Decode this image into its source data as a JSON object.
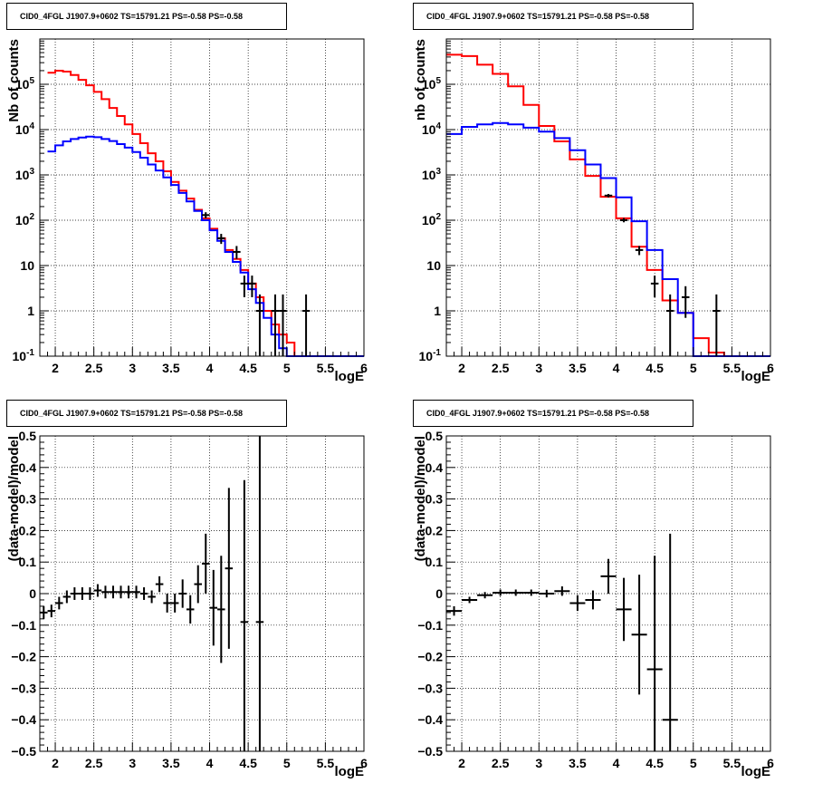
{
  "chart_data": [
    {
      "type": "line",
      "title": "CID0_4FGL J1907.9+0602 TS=15791.21 PS=-0.58 PS=-0.58",
      "xlabel": "logE",
      "ylabel": "Nb of counts",
      "xlim": [
        1.8,
        6.0
      ],
      "ylim": [
        0.1,
        1000000
      ],
      "yscale": "log",
      "grid": true,
      "x_ticks": [
        "2",
        "2.5",
        "3",
        "3.5",
        "4",
        "4.5",
        "5",
        "5.5",
        "6"
      ],
      "y_ticks": [
        "10^-1",
        "1",
        "10",
        "10^2",
        "10^3",
        "10^4",
        "10^5"
      ],
      "series": [
        {
          "color": "#ff0000",
          "style": "step",
          "bin_edges": [
            1.9,
            2.0,
            2.1,
            2.2,
            2.3,
            2.4,
            2.5,
            2.6,
            2.7,
            2.8,
            2.9,
            3.0,
            3.1,
            3.2,
            3.3,
            3.4,
            3.5,
            3.6,
            3.7,
            3.8,
            3.9,
            4.0,
            4.1,
            4.2,
            4.3,
            4.4,
            4.5,
            4.6,
            4.7,
            4.8,
            4.9,
            5.0,
            5.1,
            5.2,
            5.3,
            5.4,
            5.5,
            5.6,
            5.7,
            5.8,
            5.9,
            6.0
          ],
          "values": [
            180000,
            200000,
            190000,
            160000,
            125000,
            95000,
            68000,
            47000,
            30000,
            20000,
            13000,
            8000,
            5000,
            3000,
            2000,
            1200,
            700,
            450,
            300,
            170,
            110,
            65,
            40,
            22,
            14,
            8,
            4,
            2,
            1,
            0.5,
            0.3,
            0.2,
            0.1,
            0.1,
            0.1,
            0.1,
            0.1,
            0.1,
            0.1,
            0.1,
            0.1
          ]
        },
        {
          "color": "#0000ff",
          "style": "step",
          "bin_edges": [
            1.9,
            2.0,
            2.1,
            2.2,
            2.3,
            2.4,
            2.5,
            2.6,
            2.7,
            2.8,
            2.9,
            3.0,
            3.1,
            3.2,
            3.3,
            3.4,
            3.5,
            3.6,
            3.7,
            3.8,
            3.9,
            4.0,
            4.1,
            4.2,
            4.3,
            4.4,
            4.5,
            4.6,
            4.7,
            4.8,
            4.9,
            5.0,
            5.1,
            5.2,
            5.3,
            5.4,
            5.5,
            5.6,
            5.7,
            5.8,
            5.9,
            6.0
          ],
          "values": [
            3300,
            4500,
            5500,
            6200,
            6700,
            7000,
            6800,
            6200,
            5600,
            4800,
            4000,
            3200,
            2400,
            1700,
            1250,
            880,
            600,
            400,
            260,
            160,
            100,
            60,
            35,
            20,
            12,
            7,
            3,
            1.5,
            0.7,
            0.3,
            0.15,
            0.1,
            0.1,
            0.1,
            0.1,
            0.1,
            0.1,
            0.1,
            0.1,
            0.1,
            0.1
          ]
        },
        {
          "color": "#000000",
          "style": "errorbar",
          "points": [
            {
              "x": 3.95,
              "y": 130,
              "ylo": 110,
              "yhi": 150
            },
            {
              "x": 4.15,
              "y": 40,
              "ylo": 30,
              "yhi": 50
            },
            {
              "x": 4.35,
              "y": 20,
              "ylo": 14,
              "yhi": 27
            },
            {
              "x": 4.45,
              "y": 4,
              "ylo": 2,
              "yhi": 6
            },
            {
              "x": 4.55,
              "y": 4,
              "ylo": 2,
              "yhi": 6
            },
            {
              "x": 4.65,
              "y": 1,
              "ylo": 0.1,
              "yhi": 2.3
            },
            {
              "x": 4.85,
              "y": 1,
              "ylo": 0.1,
              "yhi": 2.3
            },
            {
              "x": 4.95,
              "y": 1,
              "ylo": 0.1,
              "yhi": 2.3
            },
            {
              "x": 5.25,
              "y": 1,
              "ylo": 0.1,
              "yhi": 2.3
            }
          ]
        }
      ]
    },
    {
      "type": "line",
      "title": "CID0_4FGL J1907.9+0602 TS=15791.21 PS=-0.58 PS=-0.58",
      "xlabel": "logE",
      "ylabel": "nb of counts",
      "xlim": [
        1.8,
        6.0
      ],
      "ylim": [
        0.1,
        1000000
      ],
      "yscale": "log",
      "grid": true,
      "x_ticks": [
        "2",
        "2.5",
        "3",
        "3.5",
        "4",
        "4.5",
        "5",
        "5.5",
        "6"
      ],
      "y_ticks": [
        "10^-1",
        "1",
        "10",
        "10^2",
        "10^3",
        "10^4",
        "10^5"
      ],
      "series": [
        {
          "color": "#ff0000",
          "style": "step",
          "bin_edges": [
            1.8,
            2.0,
            2.2,
            2.4,
            2.6,
            2.8,
            3.0,
            3.2,
            3.4,
            3.6,
            3.8,
            4.0,
            4.2,
            4.4,
            4.6,
            4.8,
            5.0,
            5.2,
            5.4,
            5.6,
            5.8,
            6.0
          ],
          "values": [
            450000,
            420000,
            270000,
            170000,
            90000,
            35000,
            12000,
            5500,
            2200,
            950,
            330,
            110,
            26,
            8,
            1.7,
            0.9,
            0.25,
            0.12,
            0.1,
            0.1,
            0.1
          ]
        },
        {
          "color": "#0000ff",
          "style": "step",
          "bin_edges": [
            1.8,
            2.0,
            2.2,
            2.4,
            2.6,
            2.8,
            3.0,
            3.2,
            3.4,
            3.6,
            3.8,
            4.0,
            4.2,
            4.4,
            4.6,
            4.8,
            5.0,
            5.2,
            5.4,
            5.6,
            5.8,
            6.0
          ],
          "values": [
            8000,
            11500,
            13000,
            14000,
            13000,
            11000,
            9000,
            6500,
            3500,
            1700,
            850,
            320,
            95,
            22,
            5,
            0.9,
            0.1,
            0.1,
            0.1,
            0.1,
            0.1
          ]
        },
        {
          "color": "#000000",
          "style": "errorbar",
          "points": [
            {
              "x": 3.9,
              "y": 350,
              "ylo": 320,
              "yhi": 380
            },
            {
              "x": 4.1,
              "y": 100,
              "ylo": 90,
              "yhi": 112
            },
            {
              "x": 4.3,
              "y": 22,
              "ylo": 17,
              "yhi": 27
            },
            {
              "x": 4.5,
              "y": 4,
              "ylo": 2,
              "yhi": 6
            },
            {
              "x": 4.7,
              "y": 1,
              "ylo": 0.1,
              "yhi": 2.3
            },
            {
              "x": 4.9,
              "y": 2,
              "ylo": 0.7,
              "yhi": 3.5
            },
            {
              "x": 5.3,
              "y": 1,
              "ylo": 0.1,
              "yhi": 2.3
            }
          ]
        }
      ]
    },
    {
      "type": "scatter",
      "title": "CID0_4FGL J1907.9+0602 TS=15791.21 PS=-0.58 PS=-0.58",
      "xlabel": "logE",
      "ylabel": "(data-model)/model",
      "xlim": [
        1.8,
        6.0
      ],
      "ylim": [
        -0.5,
        0.5
      ],
      "grid": true,
      "x_ticks": [
        "2",
        "2.5",
        "3",
        "3.5",
        "4",
        "4.5",
        "5",
        "5.5",
        "6"
      ],
      "y_ticks": [
        "-0.5",
        "-0.4",
        "-0.3",
        "-0.2",
        "-0.1",
        "0",
        "0.1",
        "0.2",
        "0.3",
        "0.4",
        "0.5"
      ],
      "series": [
        {
          "color": "#000000",
          "style": "errorbar",
          "xerr": 0.05,
          "points": [
            {
              "x": 1.85,
              "y": -0.06,
              "err": 0.02
            },
            {
              "x": 1.95,
              "y": -0.055,
              "err": 0.02
            },
            {
              "x": 2.05,
              "y": -0.03,
              "err": 0.02
            },
            {
              "x": 2.15,
              "y": -0.01,
              "err": 0.02
            },
            {
              "x": 2.25,
              "y": 0.0,
              "err": 0.02
            },
            {
              "x": 2.35,
              "y": 0.0,
              "err": 0.02
            },
            {
              "x": 2.45,
              "y": 0.0,
              "err": 0.02
            },
            {
              "x": 2.55,
              "y": 0.01,
              "err": 0.02
            },
            {
              "x": 2.65,
              "y": 0.005,
              "err": 0.02
            },
            {
              "x": 2.75,
              "y": 0.005,
              "err": 0.02
            },
            {
              "x": 2.85,
              "y": 0.005,
              "err": 0.02
            },
            {
              "x": 2.95,
              "y": 0.005,
              "err": 0.02
            },
            {
              "x": 3.05,
              "y": 0.005,
              "err": 0.02
            },
            {
              "x": 3.15,
              "y": 0.0,
              "err": 0.02
            },
            {
              "x": 3.25,
              "y": -0.01,
              "err": 0.02
            },
            {
              "x": 3.35,
              "y": 0.03,
              "err": 0.025
            },
            {
              "x": 3.45,
              "y": -0.03,
              "err": 0.03
            },
            {
              "x": 3.55,
              "y": -0.03,
              "err": 0.03
            },
            {
              "x": 3.65,
              "y": 0.0,
              "err": 0.045
            },
            {
              "x": 3.75,
              "y": -0.05,
              "err": 0.045
            },
            {
              "x": 3.85,
              "y": 0.03,
              "err": 0.06
            },
            {
              "x": 3.95,
              "y": 0.095,
              "err": 0.095
            },
            {
              "x": 4.05,
              "y": -0.045,
              "err": 0.12
            },
            {
              "x": 4.15,
              "y": -0.05,
              "err": 0.17
            },
            {
              "x": 4.25,
              "y": 0.08,
              "err": 0.255
            },
            {
              "x": 4.45,
              "y": -0.09,
              "err": 0.45
            },
            {
              "x": 4.65,
              "y": -0.09,
              "err": 0.6
            }
          ]
        }
      ]
    },
    {
      "type": "scatter",
      "title": "CID0_4FGL J1907.9+0602 TS=15791.21 PS=-0.58 PS=-0.58",
      "xlabel": "logE",
      "ylabel": "(data-model)/model",
      "xlim": [
        1.8,
        6.0
      ],
      "ylim": [
        -0.5,
        0.5
      ],
      "grid": true,
      "x_ticks": [
        "2",
        "2.5",
        "3",
        "3.5",
        "4",
        "4.5",
        "5",
        "5.5",
        "6"
      ],
      "y_ticks": [
        "-0.5",
        "-0.4",
        "-0.3",
        "-0.2",
        "-0.1",
        "0",
        "0.1",
        "0.2",
        "0.3",
        "0.4",
        "0.5"
      ],
      "series": [
        {
          "color": "#000000",
          "style": "errorbar",
          "xerr": 0.1,
          "points": [
            {
              "x": 1.9,
              "y": -0.055,
              "err": 0.015
            },
            {
              "x": 2.1,
              "y": -0.02,
              "err": 0.01
            },
            {
              "x": 2.3,
              "y": -0.005,
              "err": 0.01
            },
            {
              "x": 2.5,
              "y": 0.003,
              "err": 0.01
            },
            {
              "x": 2.7,
              "y": 0.003,
              "err": 0.01
            },
            {
              "x": 2.9,
              "y": 0.003,
              "err": 0.01
            },
            {
              "x": 3.1,
              "y": 0.0,
              "err": 0.012
            },
            {
              "x": 3.3,
              "y": 0.008,
              "err": 0.015
            },
            {
              "x": 3.5,
              "y": -0.03,
              "err": 0.025
            },
            {
              "x": 3.7,
              "y": -0.02,
              "err": 0.03
            },
            {
              "x": 3.9,
              "y": 0.055,
              "err": 0.055
            },
            {
              "x": 4.1,
              "y": -0.05,
              "err": 0.1
            },
            {
              "x": 4.3,
              "y": -0.13,
              "err": 0.19
            },
            {
              "x": 4.5,
              "y": -0.24,
              "err": 0.36
            },
            {
              "x": 4.7,
              "y": -0.4,
              "err": 0.59
            }
          ]
        }
      ]
    }
  ]
}
